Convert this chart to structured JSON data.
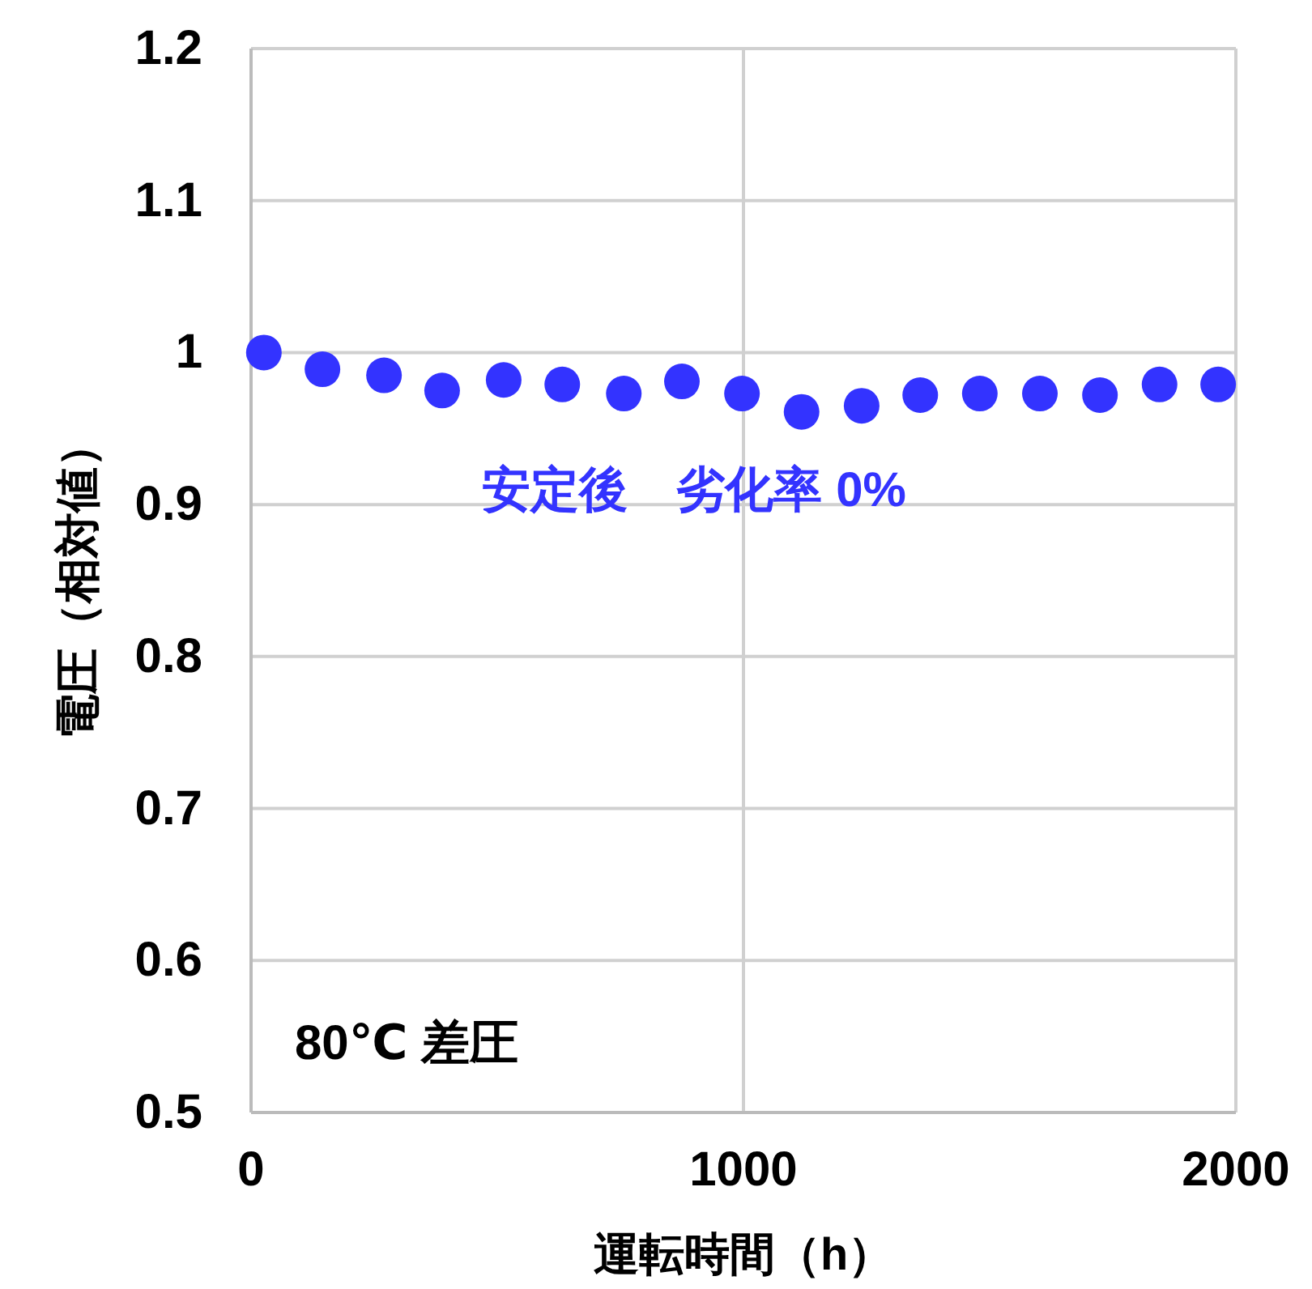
{
  "chart_data": {
    "type": "scatter",
    "xlabel": "運転時間（h）",
    "ylabel": "電圧（相対値）",
    "x": [
      26,
      145,
      270,
      388,
      513,
      632,
      757,
      875,
      997,
      1118,
      1240,
      1359,
      1480,
      1602,
      1724,
      1845,
      1964
    ],
    "series": [
      {
        "color": "#3333ff",
        "values": [
          1.0,
          0.989,
          0.985,
          0.975,
          0.982,
          0.979,
          0.973,
          0.981,
          0.973,
          0.961,
          0.965,
          0.972,
          0.973,
          0.973,
          0.972,
          0.979,
          0.979
        ]
      }
    ],
    "xlim": [
      0,
      2000
    ],
    "xticks": [
      0,
      1000,
      2000
    ],
    "ylim": [
      0.5,
      1.2
    ],
    "yticks": [
      0.5,
      0.6,
      0.7,
      0.8,
      0.9,
      1,
      1.1,
      1.2
    ],
    "grid": true,
    "marker": "circle",
    "annotations": [
      "安定後　劣化率 0%",
      "80℃ 差圧"
    ]
  }
}
